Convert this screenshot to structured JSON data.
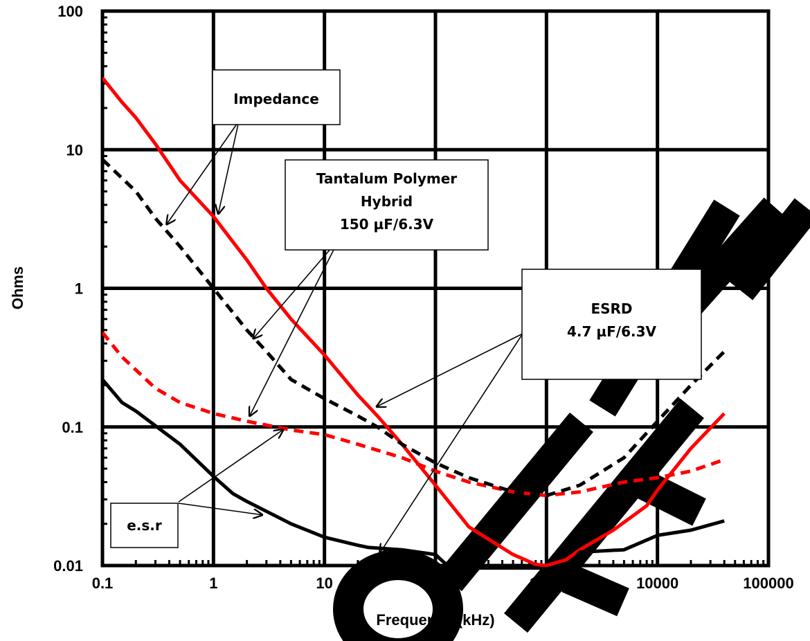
{
  "chart_data": {
    "type": "line",
    "xlabel": "Frequency (kHz)",
    "ylabel": "Ohms",
    "x_scale": "log",
    "y_scale": "log",
    "xlim": [
      0.1,
      100000
    ],
    "ylim": [
      0.01,
      100
    ],
    "x_ticks": [
      "0.1",
      "1",
      "10",
      "100",
      "1000",
      "10000",
      "100000"
    ],
    "y_ticks": [
      "0.01",
      "0.1",
      "1",
      "10",
      "100"
    ],
    "grid": true,
    "watermark": "OBSOLETE",
    "series": [
      {
        "group": "ESRD 4.7 µF/6.3V",
        "quantity": "Impedance",
        "color": "#ff0000",
        "dash": "solid",
        "points": [
          [
            0.1,
            33
          ],
          [
            0.15,
            22
          ],
          [
            0.2,
            17
          ],
          [
            0.3,
            11
          ],
          [
            0.5,
            6
          ],
          [
            1,
            3.3
          ],
          [
            2,
            1.6
          ],
          [
            3,
            1.0
          ],
          [
            5,
            0.6
          ],
          [
            10,
            0.33
          ],
          [
            20,
            0.17
          ],
          [
            30,
            0.12
          ],
          [
            50,
            0.075
          ],
          [
            100,
            0.038
          ],
          [
            200,
            0.019
          ],
          [
            500,
            0.012
          ],
          [
            800,
            0.0102
          ],
          [
            1000,
            0.01
          ],
          [
            1500,
            0.011
          ],
          [
            2000,
            0.013
          ],
          [
            4000,
            0.018
          ],
          [
            8000,
            0.027
          ],
          [
            10000,
            0.035
          ],
          [
            20000,
            0.07
          ],
          [
            40000,
            0.125
          ]
        ]
      },
      {
        "group": "ESRD 4.7 µF/6.3V",
        "quantity": "e.s.r",
        "color": "#ff0000",
        "dash": "dashed",
        "points": [
          [
            0.1,
            0.48
          ],
          [
            0.15,
            0.32
          ],
          [
            0.3,
            0.19
          ],
          [
            0.5,
            0.15
          ],
          [
            1,
            0.125
          ],
          [
            2,
            0.11
          ],
          [
            5,
            0.095
          ],
          [
            10,
            0.088
          ],
          [
            20,
            0.075
          ],
          [
            50,
            0.06
          ],
          [
            100,
            0.048
          ],
          [
            200,
            0.04
          ],
          [
            500,
            0.034
          ],
          [
            1000,
            0.032
          ],
          [
            2000,
            0.034
          ],
          [
            5000,
            0.04
          ],
          [
            10000,
            0.043
          ],
          [
            20000,
            0.048
          ],
          [
            40000,
            0.058
          ]
        ]
      },
      {
        "group": "Tantalum Polymer Hybrid 150 µF/6.3V",
        "quantity": "Impedance",
        "color": "#000000",
        "dash": "dashed",
        "points": [
          [
            0.1,
            8.5
          ],
          [
            0.2,
            5
          ],
          [
            0.3,
            3.2
          ],
          [
            0.5,
            2
          ],
          [
            1,
            1.0
          ],
          [
            2,
            0.5
          ],
          [
            3,
            0.35
          ],
          [
            5,
            0.22
          ],
          [
            10,
            0.16
          ],
          [
            20,
            0.12
          ],
          [
            30,
            0.1
          ],
          [
            50,
            0.075
          ],
          [
            100,
            0.055
          ],
          [
            200,
            0.043
          ],
          [
            500,
            0.034
          ],
          [
            1000,
            0.032
          ],
          [
            2000,
            0.038
          ],
          [
            5000,
            0.06
          ],
          [
            10000,
            0.11
          ],
          [
            20000,
            0.2
          ],
          [
            40000,
            0.35
          ]
        ]
      },
      {
        "group": "Tantalum Polymer Hybrid 150 µF/6.3V",
        "quantity": "e.s.r",
        "color": "#000000",
        "dash": "solid",
        "points": [
          [
            0.1,
            0.22
          ],
          [
            0.15,
            0.15
          ],
          [
            0.2,
            0.13
          ],
          [
            0.5,
            0.075
          ],
          [
            1,
            0.044
          ],
          [
            1.5,
            0.033
          ],
          [
            2,
            0.029
          ],
          [
            5,
            0.02
          ],
          [
            10,
            0.016
          ],
          [
            20,
            0.014
          ],
          [
            25,
            0.0135
          ],
          [
            50,
            0.013
          ],
          [
            100,
            0.012
          ],
          [
            120,
            0.0105
          ],
          [
            150,
            0.0095
          ],
          [
            1500,
            0.0095
          ],
          [
            2000,
            0.0125
          ],
          [
            5000,
            0.013
          ],
          [
            10000,
            0.0165
          ],
          [
            20000,
            0.018
          ],
          [
            40000,
            0.021
          ]
        ]
      }
    ],
    "annotations": [
      {
        "id": "impedance",
        "lines": [
          "Impedance"
        ]
      },
      {
        "id": "tantalum",
        "lines": [
          "Tantalum Polymer",
          "Hybrid",
          "150 µF/6.3V"
        ]
      },
      {
        "id": "esrd",
        "lines": [
          "ESRD",
          "4.7 µF/6.3V"
        ]
      },
      {
        "id": "esr",
        "lines": [
          "e.s.r"
        ]
      }
    ]
  }
}
